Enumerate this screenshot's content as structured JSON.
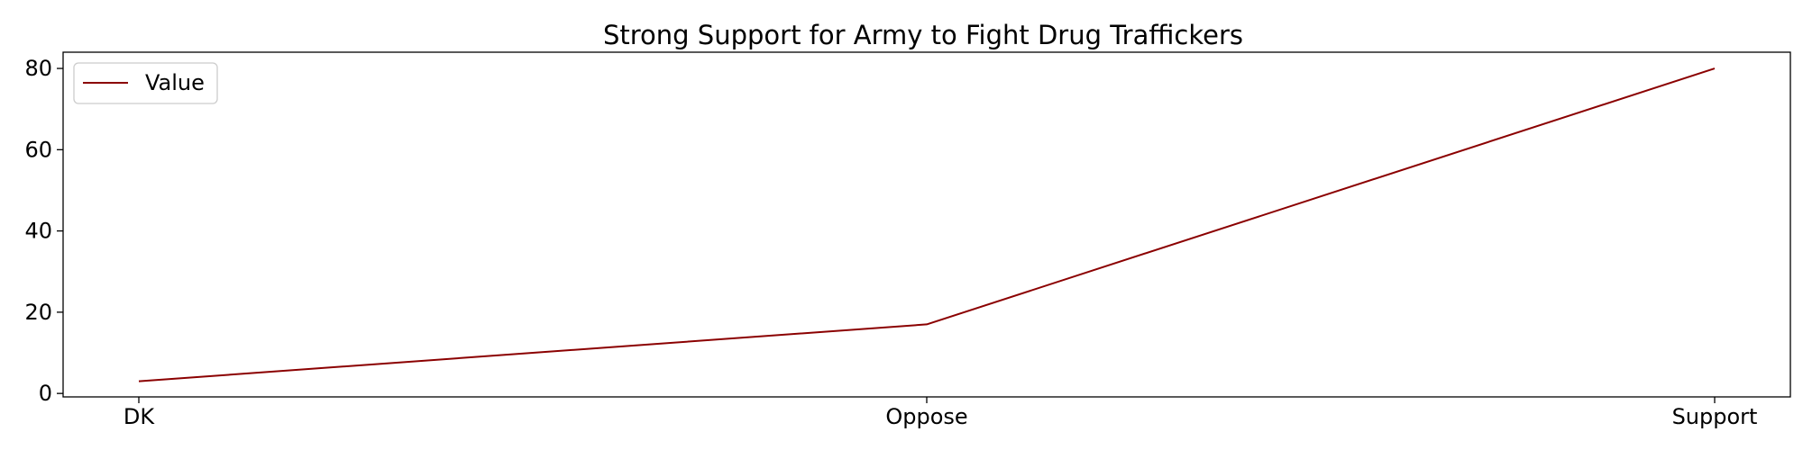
{
  "chart_data": {
    "type": "line",
    "title": "Strong Support for Army to Fight Drug Traffickers",
    "xlabel": "",
    "ylabel": "",
    "categories": [
      "DK",
      "Oppose",
      "Support"
    ],
    "series": [
      {
        "name": "Value",
        "values": [
          3,
          17,
          80
        ],
        "color": "#8b0000"
      }
    ],
    "ylim": [
      -0.85,
      84.0
    ],
    "yticks": [
      0,
      20,
      40,
      60,
      80
    ],
    "grid": false,
    "legend_position": "top-left"
  }
}
